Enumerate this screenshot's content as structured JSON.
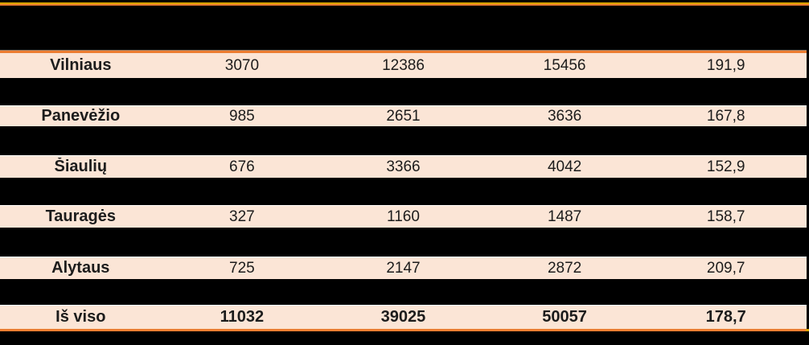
{
  "chart_data": {
    "type": "table",
    "rows": [
      {
        "label": "Vilniaus",
        "values": [
          "3070",
          "12386",
          "15456",
          "191,9"
        ]
      },
      {
        "label": "Panevėžio",
        "values": [
          "985",
          "2651",
          "3636",
          "167,8"
        ]
      },
      {
        "label": "Šiaulių",
        "values": [
          "676",
          "3366",
          "4042",
          "152,9"
        ]
      },
      {
        "label": "Tauragės",
        "values": [
          "327",
          "1160",
          "1487",
          "158,7"
        ]
      },
      {
        "label": "Alytaus",
        "values": [
          "725",
          "2147",
          "2872",
          "209,7"
        ]
      }
    ],
    "total_row": {
      "label": "Iš viso",
      "values": [
        "11032",
        "39025",
        "50057",
        "178,7"
      ]
    },
    "layout": {
      "columns": 5,
      "banded_rows": true,
      "header_row_empty": true,
      "legend_position": "none",
      "grid": false
    }
  },
  "colors": {
    "background": "#000000",
    "row_background": "#FBE5D6",
    "accent_orange": "#ED7D31",
    "accent_yellow": "#D9A400",
    "text": "#1C1C1C"
  }
}
